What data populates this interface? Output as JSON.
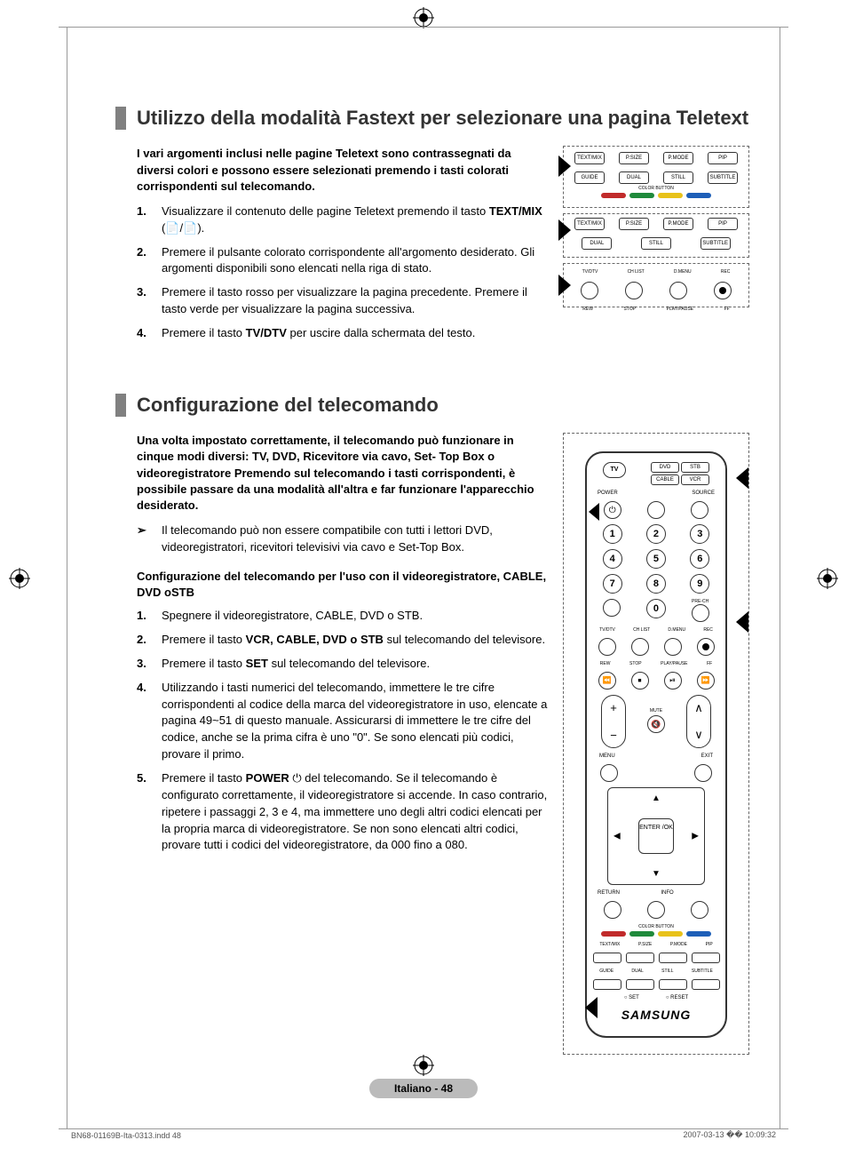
{
  "section1": {
    "title": "Utilizzo della modalità  Fastext per selezionare una pagina Teletext",
    "intro": "I vari argomenti inclusi nelle pagine Teletext sono contrassegnati da diversi colori e possono essere selezionati premendo i tasti colorati corrispondenti sul telecomando.",
    "steps": [
      {
        "pre": "Visualizzare il contenuto delle pagine Teletext premendo il tasto ",
        "bold": "TEXT/MIX",
        "post": " (📄/📄)."
      },
      {
        "pre": "Premere il pulsante colorato corrispondente all'argomento desiderato. Gli argomenti disponibili sono elencati nella riga di stato.",
        "bold": "",
        "post": ""
      },
      {
        "pre": "Premere il tasto rosso per visualizzare la pagina precedente. Premere il tasto verde per visualizzare la pagina successiva.",
        "bold": "",
        "post": ""
      },
      {
        "pre": "Premere il tasto ",
        "bold": "TV/DTV",
        "post": " per uscire dalla schermata del testo."
      }
    ],
    "snippet_labels": [
      "TEXT/MIX",
      "P.SIZE",
      "P.MODE",
      "PIP",
      "GUIDE",
      "DUAL",
      "STILL",
      "SUBTITLE",
      "TV/DTV",
      "CH LIST",
      "D.MENU",
      "REC",
      "REW",
      "STOP",
      "PLAY/PAUSE",
      "FF",
      "COLOR BUTTON"
    ],
    "color_buttons": [
      "#c12b2b",
      "#1f8a3b",
      "#e8c21a",
      "#1e5fb8"
    ]
  },
  "section2": {
    "title": "Configurazione del telecomando",
    "intro": "Una volta impostato correttamente, il telecomando può funzionare in cinque modi diversi: TV, DVD, Ricevitore via cavo, Set- Top Box o videoregistratore Premendo sul telecomando i tasti corrispondenti, è possibile passare da una modalità all'altra e far funzionare l'apparecchio desiderato.",
    "note": "Il telecomando può non essere compatibile con tutti i lettori DVD, videoregistratori, ricevitori televisivi via cavo e Set-Top Box.",
    "sub_head": "Configurazione del telecomando per l'uso con il videoregistratore, CABLE, DVD oSTB",
    "steps": [
      {
        "pre": "Spegnere il videoregistratore, CABLE, DVD o STB.",
        "bold": "",
        "post": ""
      },
      {
        "pre": "Premere il tasto ",
        "bold": "VCR, CABLE, DVD o STB",
        "post": " sul telecomando del televisore."
      },
      {
        "pre": "Premere il tasto ",
        "bold": "SET",
        "post": " sul telecomando del televisore."
      },
      {
        "pre": "Utilizzando i tasti numerici del telecomando, immettere le tre cifre corrispondenti al codice della marca del videoregistratore in uso, elencate a pagina 49~51 di questo manuale. Assicurarsi di immettere le tre cifre del codice, anche se la prima cifra è uno \"0\". Se sono elencati più codici, provare il primo.",
        "bold": "",
        "post": ""
      },
      {
        "pre": "Premere il tasto ",
        "bold": "POWER",
        "post": " ⏻ del telecomando. Se il telecomando è configurato correttamente, il videoregistratore si accende. In caso contrario, ripetere i passaggi 2, 3 e 4, ma immettere uno degli altri codici elencati per la propria marca di videoregistratore. Se non sono elencati altri codici, provare tutti i codici del videoregistratore, da 000 fino a 080."
      }
    ],
    "remote": {
      "mode_buttons": [
        "DVD",
        "STB",
        "CABLE",
        "VCR"
      ],
      "tv_label": "TV",
      "power_label": "POWER",
      "source_label": "SOURCE",
      "numbers": [
        "1",
        "2",
        "3",
        "4",
        "5",
        "6",
        "7",
        "8",
        "9",
        "0"
      ],
      "prech_label": "PRE-CH",
      "row_labels1": [
        "TV/DTV",
        "CH LIST",
        "D.MENU",
        "REC"
      ],
      "row_labels2": [
        "REW",
        "STOP",
        "PLAY/PAUSE",
        "FF"
      ],
      "mute_label": "MUTE",
      "menu_label": "MENU",
      "exit_label": "EXIT",
      "enter_label": "ENTER /OK",
      "return_label": "RETURN",
      "info_label": "INFO",
      "bottom_labels": [
        "TEXT/MIX",
        "P.SIZE",
        "P.MODE",
        "PIP",
        "GUIDE",
        "DUAL",
        "STILL",
        "SUBTITLE"
      ],
      "set_label": "SET",
      "reset_label": "RESET",
      "color_bar_label": "COLOR BUTTON",
      "logo": "SAMSUNG"
    }
  },
  "page_badge": "Italiano - 48",
  "footer": {
    "left": "BN68-01169B-Ita-0313.indd   48",
    "right": "2007-03-13   �� 10:09:32"
  },
  "colors": {
    "title_bar": "#808080",
    "badge_bg": "#bbbbbb"
  }
}
